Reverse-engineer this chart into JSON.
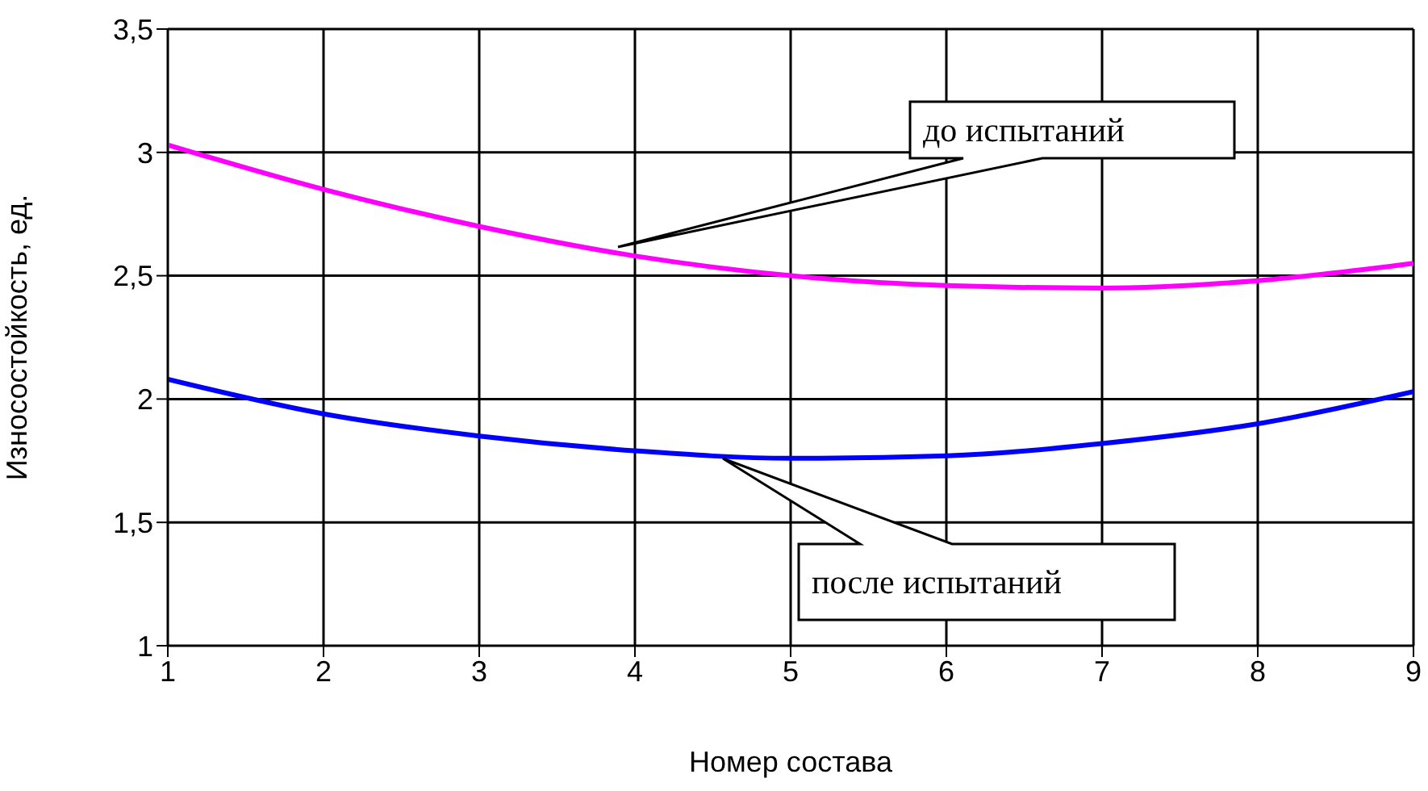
{
  "chart_data": {
    "type": "line",
    "xlabel": "Номер состава",
    "ylabel": "Износостойкость, ед.",
    "x": [
      1,
      2,
      3,
      4,
      5,
      6,
      7,
      8,
      9
    ],
    "series": [
      {
        "color": "#ff00ff",
        "values": [
          3.03,
          2.85,
          2.7,
          2.58,
          2.5,
          2.46,
          2.45,
          2.48,
          2.55
        ]
      },
      {
        "color": "#0000ff",
        "values": [
          2.08,
          1.94,
          1.85,
          1.79,
          1.76,
          1.77,
          1.82,
          1.9,
          2.03
        ]
      }
    ],
    "xlim": [
      1,
      9
    ],
    "xticks": [
      1,
      2,
      3,
      4,
      5,
      6,
      7,
      8,
      9
    ],
    "ylim": [
      1,
      3.5
    ],
    "yticks": [
      {
        "value": 1,
        "label": "1"
      },
      {
        "value": 1.5,
        "label": "1,5"
      },
      {
        "value": 2,
        "label": "2"
      },
      {
        "value": 2.5,
        "label": "2,5"
      },
      {
        "value": 3,
        "label": "3"
      },
      {
        "value": 3.5,
        "label": "3,5"
      }
    ],
    "grid": true,
    "marker": "none",
    "line_style": "solid",
    "annotations": [
      "до испытаний",
      "после испытаний"
    ]
  }
}
